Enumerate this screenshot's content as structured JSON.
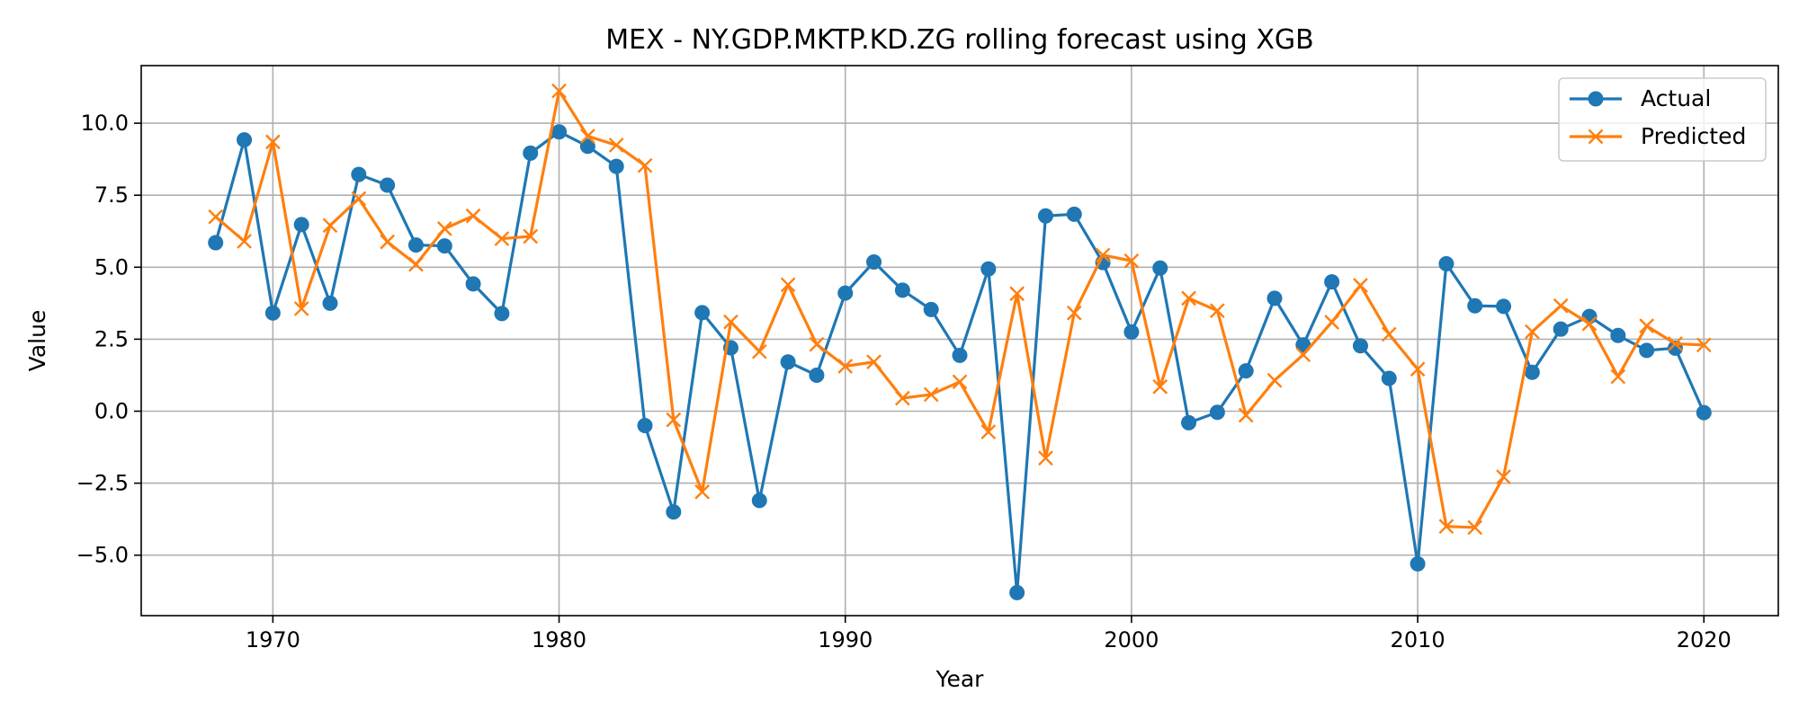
{
  "chart_data": {
    "type": "line",
    "title": "MEX - NY.GDP.MKTP.KD.ZG rolling forecast using XGB",
    "xlabel": "Year",
    "ylabel": "Value",
    "xlim": [
      1965.4,
      2022.6
    ],
    "ylim": [
      -7.1,
      12.0
    ],
    "xticks": [
      1970,
      1980,
      1990,
      2000,
      2010,
      2020
    ],
    "yticks": [
      -5.0,
      -2.5,
      0.0,
      2.5,
      5.0,
      7.5,
      10.0
    ],
    "ytick_labels": [
      "−5.0",
      "−2.5",
      "0.0",
      "2.5",
      "5.0",
      "7.5",
      "10.0"
    ],
    "grid": true,
    "legend_position": "top-right",
    "x": [
      1968,
      1969,
      1970,
      1971,
      1972,
      1973,
      1974,
      1975,
      1976,
      1977,
      1978,
      1979,
      1980,
      1981,
      1982,
      1983,
      1984,
      1985,
      1986,
      1987,
      1988,
      1989,
      1990,
      1991,
      1992,
      1993,
      1994,
      1995,
      1996,
      1997,
      1998,
      1999,
      2000,
      2001,
      2002,
      2003,
      2004,
      2005,
      2006,
      2007,
      2008,
      2009,
      2010,
      2011,
      2012,
      2013,
      2014,
      2015,
      2016,
      2017,
      2018,
      2019,
      2020
    ],
    "series": [
      {
        "name": "Actual",
        "color": "#1f77b4",
        "marker": "circle",
        "values": [
          5.85,
          9.42,
          3.41,
          6.48,
          3.75,
          8.22,
          7.85,
          5.77,
          5.74,
          4.42,
          3.39,
          8.96,
          9.7,
          9.2,
          8.5,
          -0.5,
          -3.5,
          3.42,
          2.2,
          -3.1,
          1.71,
          1.25,
          4.1,
          5.18,
          4.2,
          3.53,
          1.94,
          4.94,
          -6.3,
          6.78,
          6.84,
          5.16,
          2.75,
          4.97,
          -0.4,
          -0.04,
          1.4,
          3.92,
          2.3,
          4.49,
          2.27,
          1.14,
          -5.3,
          5.12,
          3.66,
          3.64,
          1.35,
          2.85,
          3.29,
          2.63,
          2.11,
          2.19,
          -0.05
        ]
      },
      {
        "name": "Predicted",
        "color": "#ff7f0e",
        "marker": "x",
        "values": [
          6.75,
          5.9,
          9.35,
          3.56,
          6.45,
          7.38,
          5.88,
          5.1,
          6.34,
          6.78,
          5.99,
          6.07,
          11.12,
          9.55,
          9.24,
          8.53,
          -0.3,
          -2.8,
          3.1,
          2.07,
          4.39,
          2.32,
          1.56,
          1.71,
          0.45,
          0.58,
          1.02,
          -0.72,
          4.08,
          -1.63,
          3.41,
          5.42,
          5.22,
          0.85,
          3.92,
          3.49,
          -0.14,
          1.07,
          1.96,
          3.09,
          4.37,
          2.67,
          1.46,
          -4.0,
          -4.04,
          -2.28,
          2.76,
          3.66,
          3.04,
          1.2,
          2.96,
          2.34,
          2.3
        ]
      }
    ]
  }
}
